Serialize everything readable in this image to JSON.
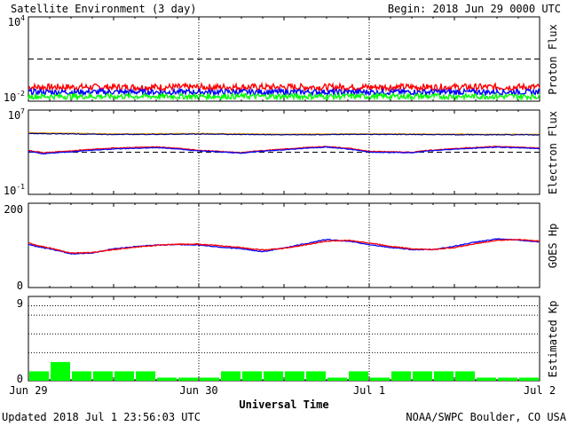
{
  "header": {
    "title": "Satellite Environment (3 day)",
    "begin": "Begin:  2018 Jun 29 0000 UTC"
  },
  "footer": {
    "updated": "Updated 2018 Jul  1 23:56:03 UTC",
    "credit": "NOAA/SWPC Boulder, CO USA"
  },
  "colors": {
    "red": "#ff0000",
    "blue": "#0000ff",
    "green": "#00ff00",
    "orange": "#ffb000",
    "navy": "#000080",
    "kp_bar": "#00ff00"
  },
  "chart_data": [
    {
      "type": "line",
      "panel": "proton",
      "ylabel": "Proton Flux",
      "yscale": "log",
      "ylim": [
        0.01,
        10000
      ],
      "yticks": [
        {
          "base": "10",
          "exp": "4",
          "value": 10000
        },
        {
          "base": "10",
          "exp": "-2",
          "value": 0.01
        }
      ],
      "threshold": 10,
      "x": [
        0,
        72
      ],
      "series": [
        {
          "color": "red",
          "level": 0.1,
          "noise": 0.06
        },
        {
          "color": "blue",
          "level": 0.045,
          "noise": 0.05
        },
        {
          "color": "green",
          "level": 0.022,
          "noise": 0.05
        }
      ]
    },
    {
      "type": "line",
      "panel": "electron",
      "ylabel": "Electron Flux",
      "yscale": "log",
      "ylim": [
        0.1,
        10000000
      ],
      "yticks": [
        {
          "base": "10",
          "exp": "7",
          "value": 10000000
        },
        {
          "base": "10",
          "exp": "-1",
          "value": 0.1
        }
      ],
      "threshold": 1000,
      "series": [
        {
          "color": "orange",
          "x": [
            0,
            12,
            24,
            36,
            48,
            60,
            72
          ],
          "values": [
            70000,
            55000,
            60000,
            52000,
            56000,
            52000,
            50000
          ]
        },
        {
          "color": "navy",
          "x": [
            0,
            12,
            24,
            36,
            48,
            60,
            72
          ],
          "values": [
            60000,
            48000,
            52000,
            46000,
            50000,
            46000,
            45000
          ]
        },
        {
          "color": "red",
          "x": [
            0,
            2,
            6,
            12,
            18,
            24,
            30,
            36,
            42,
            48,
            54,
            60,
            66,
            72
          ],
          "values": [
            1500,
            900,
            1300,
            2500,
            3200,
            1500,
            900,
            2000,
            3500,
            1200,
            1000,
            2200,
            3500,
            2500
          ]
        },
        {
          "color": "blue",
          "x": [
            0,
            2,
            6,
            12,
            18,
            24,
            30,
            36,
            42,
            48,
            54,
            60,
            66,
            72
          ],
          "values": [
            1200,
            700,
            1100,
            2000,
            2700,
            1300,
            800,
            1700,
            3000,
            1000,
            900,
            1900,
            3000,
            2200
          ]
        }
      ]
    },
    {
      "type": "line",
      "panel": "goes_hp",
      "ylabel": "GOES Hp",
      "ylim": [
        0,
        200
      ],
      "yticks": [
        {
          "label": "200",
          "value": 200
        },
        {
          "label": "0",
          "value": 0
        }
      ],
      "series": [
        {
          "color": "blue",
          "x": [
            0,
            1,
            3,
            6,
            9,
            12,
            15,
            18,
            21,
            24,
            27,
            30,
            33,
            36,
            39,
            42,
            45,
            48,
            51,
            54,
            57,
            60,
            63,
            66,
            69,
            72
          ],
          "values": [
            103,
            98,
            92,
            80,
            82,
            92,
            97,
            101,
            102,
            101,
            96,
            92,
            85,
            94,
            104,
            114,
            110,
            102,
            95,
            90,
            90,
            98,
            108,
            115,
            113,
            108
          ]
        },
        {
          "color": "red",
          "x": [
            0,
            1,
            3,
            6,
            9,
            12,
            15,
            18,
            21,
            24,
            27,
            30,
            33,
            36,
            39,
            42,
            45,
            48,
            51,
            54,
            57,
            60,
            63,
            66,
            69,
            72
          ],
          "values": [
            106,
            101,
            94,
            82,
            83,
            90,
            96,
            100,
            103,
            103,
            99,
            95,
            89,
            93,
            101,
            110,
            112,
            106,
            98,
            92,
            90,
            95,
            104,
            112,
            114,
            110
          ]
        }
      ]
    },
    {
      "type": "bar",
      "panel": "kp",
      "ylabel": "Estimated Kp",
      "ylim": [
        0,
        9
      ],
      "yticks": [
        {
          "label": "9",
          "value": 9
        },
        {
          "label": "0",
          "value": 0
        }
      ],
      "gridlines": [
        3,
        5,
        7,
        8
      ],
      "values": [
        1.0,
        2.0,
        1.0,
        1.0,
        1.0,
        1.0,
        0.33,
        0.33,
        0.33,
        1.0,
        1.0,
        1.0,
        1.0,
        1.0,
        0.33,
        1.0,
        0.33,
        1.0,
        1.0,
        1.0,
        1.0,
        0.33,
        0.33,
        0.33
      ]
    }
  ],
  "xaxis": {
    "label": "Universal Time",
    "ticks": [
      {
        "label": "Jun 29",
        "hour": 0
      },
      {
        "label": "Jun 30",
        "hour": 24
      },
      {
        "label": "Jul 1",
        "hour": 48
      },
      {
        "label": "Jul 2",
        "hour": 72
      }
    ],
    "hours": 72
  }
}
